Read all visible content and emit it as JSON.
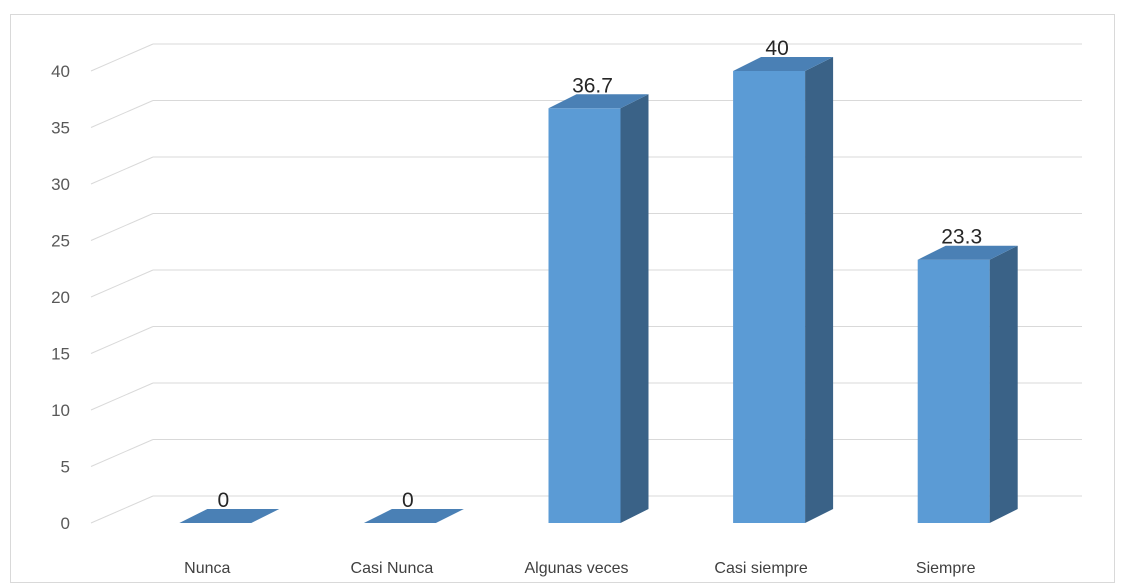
{
  "chart_data": {
    "type": "bar",
    "style": "3d-column",
    "categories": [
      "Nunca",
      "Casi Nunca",
      "Algunas veces",
      "Casi siempre",
      "Siempre"
    ],
    "values": [
      0,
      0,
      36.7,
      40,
      23.3
    ],
    "data_labels": [
      "0",
      "0",
      "36.7",
      "40",
      "23.3"
    ],
    "y_ticks": [
      "0",
      "5",
      "10",
      "15",
      "20",
      "25",
      "30",
      "35",
      "40"
    ],
    "ylim": [
      0,
      45
    ],
    "grid": true,
    "legend": "none",
    "colors": {
      "bar_front": "#5b9bd5",
      "bar_side": "#3a6287",
      "bar_top": "#4a80b5",
      "gridline": "#d9d9d9"
    }
  }
}
